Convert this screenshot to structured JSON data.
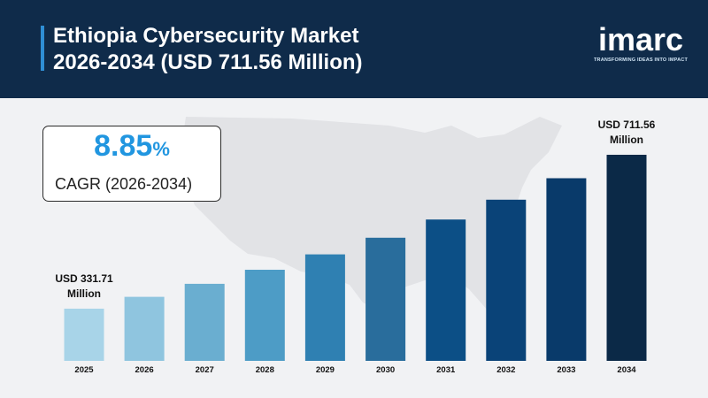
{
  "header": {
    "title_line1": "Ethiopia Cybersecurity Market",
    "title_line2": "2026-2034 (USD 711.56 Million)"
  },
  "logo": {
    "text": "imarc",
    "tagline": "TRANSFORMING IDEAS INTO IMPACT"
  },
  "cagr": {
    "value": "8.85",
    "unit": "%",
    "label": "CAGR (2026-2034)"
  },
  "colors": {
    "header_bg": "#0f2b4a",
    "accent": "#2196e0"
  },
  "chart_data": {
    "type": "bar",
    "categories": [
      "2025",
      "2026",
      "2027",
      "2028",
      "2029",
      "2030",
      "2031",
      "2032",
      "2033",
      "2034"
    ],
    "values": [
      331.71,
      361.07,
      393.02,
      427.8,
      465.66,
      506.87,
      551.73,
      600.56,
      653.71,
      711.56
    ],
    "bar_colors": [
      "#a8d4e8",
      "#8fc5df",
      "#6aaed0",
      "#4d9cc6",
      "#2f80b2",
      "#296d9c",
      "#0c4f86",
      "#0a4378",
      "#093a6a",
      "#0b2947"
    ],
    "annotations": [
      {
        "category": "2025",
        "line1": "USD 331.71",
        "line2": "Million"
      },
      {
        "category": "2034",
        "line1": "USD 711.56",
        "line2": "Million"
      }
    ],
    "title": "",
    "xlabel": "",
    "ylabel": "",
    "grid": false
  }
}
